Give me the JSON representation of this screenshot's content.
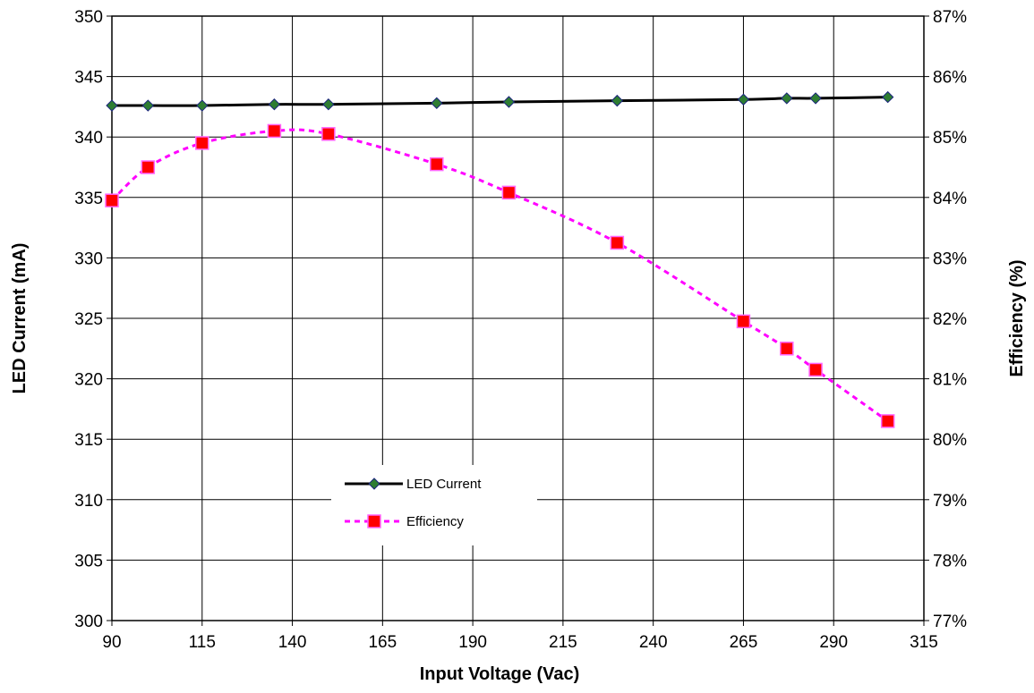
{
  "chart_data": {
    "type": "line",
    "xlabel": "Input Voltage (Vac)",
    "ylabel": "LED Current (mA)",
    "y2label": "Efficiency (%)",
    "xlim": [
      90,
      315
    ],
    "ylim": [
      300,
      350
    ],
    "y2lim": [
      77,
      87
    ],
    "x_ticks": [
      "90",
      "115",
      "140",
      "165",
      "190",
      "215",
      "240",
      "265",
      "290",
      "315"
    ],
    "y_ticks": [
      "300",
      "305",
      "310",
      "315",
      "320",
      "325",
      "330",
      "335",
      "340",
      "345",
      "350"
    ],
    "y2_ticks": [
      "77%",
      "78%",
      "79%",
      "80%",
      "81%",
      "82%",
      "83%",
      "84%",
      "85%",
      "86%",
      "87%"
    ],
    "grid": true,
    "legend_position": "lower-center",
    "series": [
      {
        "name": "LED Current",
        "axis": "left",
        "line_style": "solid",
        "line_color": "#000000",
        "marker": "diamond",
        "marker_color": "#2e7d32",
        "x": [
          90,
          100,
          115,
          135,
          150,
          180,
          200,
          230,
          265,
          277,
          285,
          305
        ],
        "y": [
          342.6,
          342.6,
          342.6,
          342.7,
          342.7,
          342.8,
          342.9,
          343.0,
          343.1,
          343.2,
          343.2,
          343.3
        ]
      },
      {
        "name": "Efficiency",
        "axis": "right",
        "line_style": "dashed",
        "line_color": "#ff00ff",
        "marker": "square",
        "marker_color": "#ff0000",
        "x": [
          90,
          100,
          115,
          135,
          150,
          180,
          200,
          230,
          265,
          277,
          285,
          305
        ],
        "y": [
          83.95,
          84.5,
          84.9,
          85.1,
          85.05,
          84.55,
          84.08,
          83.25,
          81.95,
          81.5,
          81.15,
          80.3
        ]
      }
    ]
  }
}
